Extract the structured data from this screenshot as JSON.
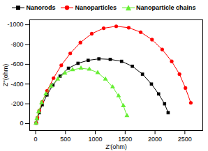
{
  "chart_data": {
    "type": "scatter",
    "x_label": "Z'(ohm)",
    "y_label": "Z''(ohm)",
    "xlim": [
      -100,
      2800
    ],
    "xticks": [
      0,
      500,
      1000,
      1500,
      2000,
      2500
    ],
    "ylim": [
      70,
      -1050
    ],
    "yticks": [
      0,
      -200,
      -400,
      -600,
      -800,
      -1000
    ],
    "grid": false,
    "legend": "top",
    "series": [
      {
        "name": "Nanorods",
        "color": "#000000",
        "marker": "square",
        "line_style": "solid",
        "x": [
          10,
          30,
          60,
          110,
          190,
          290,
          410,
          550,
          710,
          880,
          1060,
          1250,
          1440,
          1620,
          1790,
          1940,
          2060,
          2160,
          2220
        ],
        "values": [
          -5,
          -50,
          -110,
          -190,
          -290,
          -390,
          -480,
          -560,
          -610,
          -640,
          -655,
          -650,
          -630,
          -580,
          -500,
          -400,
          -300,
          -200,
          -110
        ]
      },
      {
        "name": "Nanoparticles",
        "color": "#ff0000",
        "marker": "circle",
        "line_style": "solid",
        "x": [
          10,
          30,
          60,
          110,
          190,
          300,
          430,
          580,
          750,
          940,
          1140,
          1350,
          1560,
          1760,
          1950,
          2120,
          2280,
          2410,
          2510,
          2600
        ],
        "values": [
          -5,
          -60,
          -130,
          -220,
          -330,
          -460,
          -590,
          -710,
          -820,
          -910,
          -965,
          -985,
          -970,
          -925,
          -850,
          -750,
          -630,
          -500,
          -360,
          -210
        ]
      },
      {
        "name": "Nanoparticle chains",
        "color": "#66ee33",
        "marker": "triangle",
        "line_style": "solid",
        "x": [
          5,
          20,
          50,
          100,
          170,
          260,
          370,
          490,
          620,
          760,
          900,
          1040,
          1170,
          1290,
          1390,
          1470,
          1530
        ],
        "values": [
          -3,
          -50,
          -120,
          -210,
          -300,
          -380,
          -450,
          -510,
          -545,
          -560,
          -550,
          -515,
          -450,
          -370,
          -280,
          -180,
          -80
        ]
      }
    ]
  }
}
